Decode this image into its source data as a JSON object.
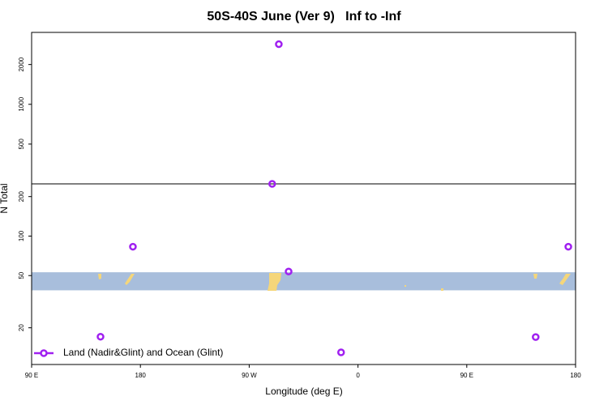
{
  "chart_data": {
    "type": "scatter",
    "title": "50S-40S June (Ver 9)   Inf to -Inf",
    "xlabel": "Longitude (deg E)",
    "ylabel": "N Total",
    "x": [
      147,
      173.8,
      294.5,
      289,
      302.6,
      346,
      507,
      534
    ],
    "series": [
      {
        "name": "Land (Nadir&Glint) and Ocean (Glint)",
        "color": "#a020f0",
        "values": [
          17.1,
          83,
          2850,
          250,
          53.7,
          13,
          17,
          83
        ]
      }
    ],
    "xlim": [
      90,
      540
    ],
    "xticks": [
      {
        "value": 90,
        "label": "90 E"
      },
      180,
      {
        "value": 270,
        "label": "90 W"
      },
      {
        "value": 360,
        "label": "0"
      },
      {
        "value": 450,
        "label": "90 E"
      },
      {
        "value": 540,
        "label": "180"
      }
    ],
    "ylim": [
      10.5,
      3500
    ],
    "y_break": 250,
    "yticks": [
      20,
      50,
      100,
      200,
      500,
      1000,
      2000
    ],
    "log_y": true,
    "shaded_range": [
      38.6,
      53
    ],
    "shaded_color": "#a8bedc",
    "legend": "lower left"
  }
}
